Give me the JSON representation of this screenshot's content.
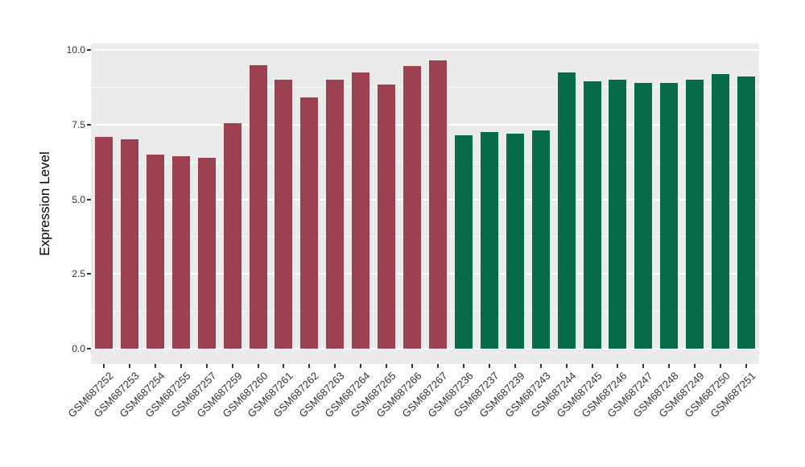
{
  "chart_data": {
    "type": "bar",
    "title": "",
    "xlabel": "",
    "ylabel": "Expression Level",
    "ylim": [
      0,
      10
    ],
    "yticks": [
      0,
      2.5,
      5,
      7.5,
      10
    ],
    "ytick_labels": [
      "0.0",
      "2.5",
      "5.0",
      "7.5",
      "10.0"
    ],
    "minor_gridlines": [
      1.25,
      3.75,
      6.25,
      8.75
    ],
    "grid": "white major and minor horizontal lines on gray panel",
    "legend_position": "none",
    "x_label_angle_deg": 45,
    "categories": [
      "GSM687252",
      "GSM687253",
      "GSM687254",
      "GSM687255",
      "GSM687257",
      "GSM687259",
      "GSM687260",
      "GSM687261",
      "GSM687262",
      "GSM687263",
      "GSM687264",
      "GSM687265",
      "GSM687266",
      "GSM687267",
      "GSM687236",
      "GSM687237",
      "GSM687239",
      "GSM687243",
      "GSM687244",
      "GSM687245",
      "GSM687246",
      "GSM687247",
      "GSM687248",
      "GSM687249",
      "GSM687250",
      "GSM687251"
    ],
    "values": [
      7.1,
      7.0,
      6.5,
      6.45,
      6.4,
      7.55,
      9.5,
      9.0,
      8.4,
      9.0,
      9.25,
      8.85,
      9.45,
      9.65,
      7.15,
      7.25,
      7.2,
      7.3,
      9.25,
      8.95,
      9.0,
      8.9,
      8.9,
      9.0,
      9.2,
      9.1
    ],
    "fill_groups": [
      {
        "name": "red-group",
        "color": "#9C4151",
        "start_index": 0,
        "end_index": 13
      },
      {
        "name": "green-group",
        "color": "#076A4A",
        "start_index": 14,
        "end_index": 25
      }
    ]
  },
  "colors": {
    "background": "#FFFFFF",
    "panel_bg": "#EBEBEB",
    "gridline": "#FFFFFF",
    "axis_text": "#333333",
    "axis_title": "#000000",
    "bar_red": "#9C4151",
    "bar_green": "#076A4A"
  }
}
